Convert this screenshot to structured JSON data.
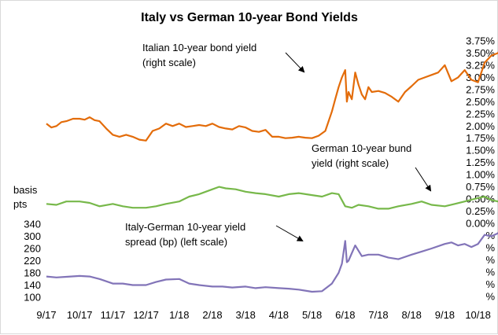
{
  "chart_data": {
    "type": "line",
    "title": "Italy vs German 10-year Bond Yields",
    "left_axis_label": [
      "basis",
      "pts"
    ],
    "left_axis_ticks": [
      "340",
      "300",
      "260",
      "220",
      "180",
      "140",
      "100"
    ],
    "left_axis_range": [
      100,
      340
    ],
    "right_axis_ticks": [
      "3.75%",
      "3.50%",
      "3.25%",
      "3.00%",
      "2.75%",
      "2.50%",
      "2.25%",
      "2.00%",
      "1.75%",
      "1.50%",
      "1.25%",
      "1.00%",
      "0.75%",
      "0.50%",
      "0.25%",
      "0.00%",
      "%",
      "%",
      "%",
      "%",
      "%",
      "%"
    ],
    "right_axis_range": [
      0.0,
      3.75
    ],
    "x_ticks": [
      "9/17",
      "10/17",
      "11/17",
      "12/17",
      "1/18",
      "2/18",
      "3/18",
      "4/18",
      "5/18",
      "6/18",
      "7/18",
      "8/18",
      "9/18",
      "10/18"
    ],
    "colors": {
      "italy": "#e36c0a",
      "germany": "#77b84a",
      "spread": "#8274b8",
      "text": "#000000",
      "frame": "#d9d9d9"
    },
    "annotations": [
      {
        "lines": [
          "Italian 10-year bond  yield",
          "(right scale)"
        ],
        "points_to": "Italian 10-year bond yield"
      },
      {
        "lines": [
          "German 10-year bund",
          "yield (right scale)"
        ],
        "points_to": "German 10-year bund yield"
      },
      {
        "lines": [
          "Italy-German 10-year yield",
          "spread (bp) (left scale)"
        ],
        "points_to": "Italy-German spread"
      }
    ],
    "series": [
      {
        "name": "Italian 10-year bond yield",
        "axis": "right",
        "x_month_index": [
          0.0,
          0.15,
          0.3,
          0.45,
          0.6,
          0.8,
          1.0,
          1.15,
          1.3,
          1.45,
          1.6,
          1.8,
          2.0,
          2.2,
          2.4,
          2.6,
          2.8,
          3.0,
          3.2,
          3.4,
          3.6,
          3.8,
          4.0,
          4.2,
          4.4,
          4.6,
          4.8,
          5.0,
          5.2,
          5.4,
          5.6,
          5.8,
          6.0,
          6.2,
          6.4,
          6.6,
          6.8,
          7.0,
          7.2,
          7.4,
          7.6,
          7.8,
          8.0,
          8.2,
          8.4,
          8.6,
          8.7,
          8.8,
          8.9,
          9.0,
          9.05,
          9.1,
          9.2,
          9.3,
          9.4,
          9.5,
          9.6,
          9.7,
          9.8,
          10.0,
          10.2,
          10.4,
          10.6,
          10.8,
          11.0,
          11.2,
          11.4,
          11.6,
          11.8,
          12.0,
          12.2,
          12.4,
          12.6,
          12.8,
          13.0,
          13.2,
          13.4,
          13.6,
          13.7,
          13.75,
          13.8
        ],
        "values": [
          2.05,
          1.97,
          2.0,
          2.08,
          2.1,
          2.15,
          2.15,
          2.13,
          2.18,
          2.12,
          2.1,
          1.95,
          1.82,
          1.78,
          1.82,
          1.78,
          1.72,
          1.7,
          1.9,
          1.95,
          2.05,
          2.0,
          2.05,
          1.98,
          2.0,
          2.02,
          2.0,
          2.05,
          1.98,
          1.95,
          1.93,
          2.0,
          1.97,
          1.9,
          1.88,
          1.92,
          1.78,
          1.78,
          1.75,
          1.76,
          1.78,
          1.76,
          1.75,
          1.8,
          1.9,
          2.3,
          2.55,
          2.8,
          3.0,
          3.15,
          2.5,
          2.7,
          2.55,
          3.1,
          2.85,
          2.65,
          2.55,
          2.8,
          2.7,
          2.72,
          2.68,
          2.6,
          2.5,
          2.7,
          2.82,
          2.95,
          3.0,
          3.05,
          3.1,
          3.25,
          2.92,
          3.0,
          3.15,
          2.95,
          2.9,
          3.3,
          3.45,
          3.5,
          3.6,
          3.5,
          3.5
        ]
      },
      {
        "name": "German 10-year bund yield",
        "axis": "right",
        "x_month_index": [
          0.0,
          0.3,
          0.6,
          1.0,
          1.3,
          1.6,
          2.0,
          2.3,
          2.6,
          3.0,
          3.3,
          3.6,
          4.0,
          4.3,
          4.6,
          5.0,
          5.2,
          5.4,
          5.7,
          6.0,
          6.3,
          6.6,
          7.0,
          7.3,
          7.6,
          8.0,
          8.3,
          8.6,
          8.8,
          9.0,
          9.2,
          9.4,
          9.7,
          10.0,
          10.3,
          10.6,
          11.0,
          11.3,
          11.6,
          12.0,
          12.3,
          12.6,
          13.0,
          13.2,
          13.4,
          13.6,
          13.8
        ],
        "values": [
          0.4,
          0.38,
          0.45,
          0.45,
          0.42,
          0.35,
          0.4,
          0.35,
          0.32,
          0.32,
          0.35,
          0.4,
          0.45,
          0.55,
          0.6,
          0.7,
          0.75,
          0.72,
          0.7,
          0.65,
          0.62,
          0.6,
          0.55,
          0.6,
          0.62,
          0.58,
          0.55,
          0.62,
          0.6,
          0.35,
          0.32,
          0.38,
          0.35,
          0.3,
          0.3,
          0.35,
          0.4,
          0.45,
          0.38,
          0.35,
          0.4,
          0.45,
          0.52,
          0.55,
          0.48,
          0.45,
          0.42
        ]
      },
      {
        "name": "Italy-German spread",
        "axis": "left",
        "x_month_index": [
          0.0,
          0.3,
          0.6,
          1.0,
          1.3,
          1.6,
          2.0,
          2.3,
          2.6,
          3.0,
          3.3,
          3.6,
          4.0,
          4.3,
          4.6,
          5.0,
          5.3,
          5.6,
          6.0,
          6.3,
          6.6,
          7.0,
          7.3,
          7.6,
          8.0,
          8.3,
          8.6,
          8.8,
          8.9,
          9.0,
          9.05,
          9.1,
          9.3,
          9.5,
          9.7,
          10.0,
          10.3,
          10.6,
          11.0,
          11.3,
          11.6,
          12.0,
          12.2,
          12.4,
          12.6,
          12.8,
          13.0,
          13.2,
          13.4,
          13.6,
          13.7,
          13.8
        ],
        "values": [
          168,
          165,
          167,
          170,
          168,
          160,
          145,
          145,
          140,
          140,
          150,
          158,
          160,
          145,
          140,
          135,
          135,
          132,
          135,
          130,
          133,
          130,
          128,
          125,
          118,
          120,
          145,
          180,
          210,
          285,
          215,
          220,
          270,
          235,
          240,
          240,
          230,
          225,
          240,
          250,
          260,
          275,
          280,
          270,
          275,
          265,
          275,
          305,
          300,
          310,
          325,
          305
        ]
      }
    ]
  }
}
